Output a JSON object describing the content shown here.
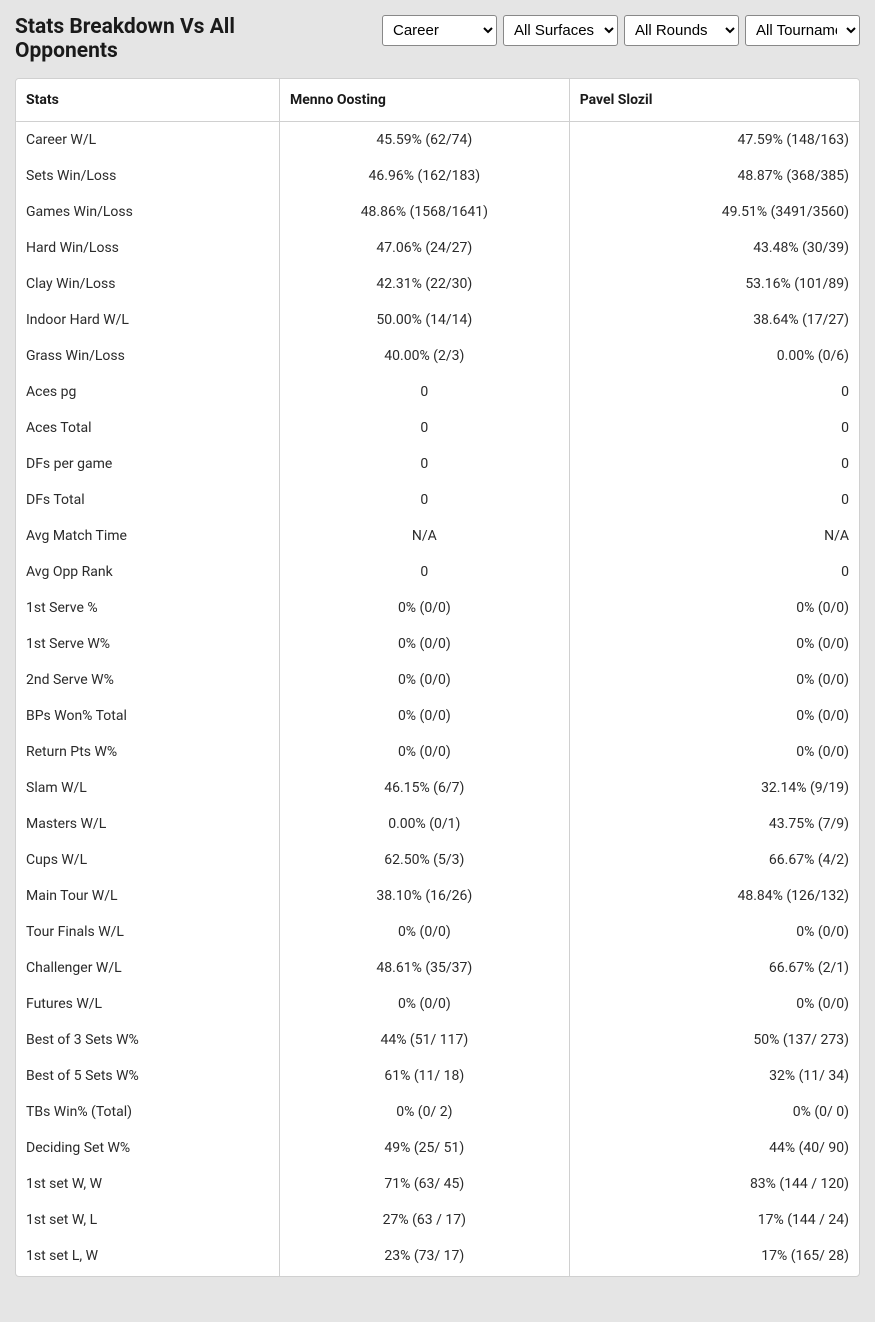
{
  "header": {
    "title": "Stats Breakdown Vs All Opponents"
  },
  "filters": {
    "career": {
      "selected": "Career",
      "options": [
        "Career"
      ]
    },
    "surface": {
      "selected": "All Surfaces",
      "options": [
        "All Surfaces"
      ]
    },
    "rounds": {
      "selected": "All Rounds",
      "options": [
        "All Rounds"
      ]
    },
    "tournaments": {
      "selected": "All Tournaments",
      "options": [
        "All Tournaments"
      ]
    }
  },
  "table": {
    "columns": {
      "stats": "Stats",
      "player1": "Menno Oosting",
      "player2": "Pavel Slozil"
    },
    "rows": [
      {
        "stat": "Career W/L",
        "p1": "45.59% (62/74)",
        "p2": "47.59% (148/163)"
      },
      {
        "stat": "Sets Win/Loss",
        "p1": "46.96% (162/183)",
        "p2": "48.87% (368/385)"
      },
      {
        "stat": "Games Win/Loss",
        "p1": "48.86% (1568/1641)",
        "p2": "49.51% (3491/3560)"
      },
      {
        "stat": "Hard Win/Loss",
        "p1": "47.06% (24/27)",
        "p2": "43.48% (30/39)"
      },
      {
        "stat": "Clay Win/Loss",
        "p1": "42.31% (22/30)",
        "p2": "53.16% (101/89)"
      },
      {
        "stat": "Indoor Hard W/L",
        "p1": "50.00% (14/14)",
        "p2": "38.64% (17/27)"
      },
      {
        "stat": "Grass Win/Loss",
        "p1": "40.00% (2/3)",
        "p2": "0.00% (0/6)"
      },
      {
        "stat": "Aces pg",
        "p1": "0",
        "p2": "0"
      },
      {
        "stat": "Aces Total",
        "p1": "0",
        "p2": "0"
      },
      {
        "stat": "DFs per game",
        "p1": "0",
        "p2": "0"
      },
      {
        "stat": "DFs Total",
        "p1": "0",
        "p2": "0"
      },
      {
        "stat": "Avg Match Time",
        "p1": "N/A",
        "p2": "N/A"
      },
      {
        "stat": "Avg Opp Rank",
        "p1": "0",
        "p2": "0"
      },
      {
        "stat": "1st Serve %",
        "p1": "0% (0/0)",
        "p2": "0% (0/0)"
      },
      {
        "stat": "1st Serve W%",
        "p1": "0% (0/0)",
        "p2": "0% (0/0)"
      },
      {
        "stat": "2nd Serve W%",
        "p1": "0% (0/0)",
        "p2": "0% (0/0)"
      },
      {
        "stat": "BPs Won% Total",
        "p1": "0% (0/0)",
        "p2": "0% (0/0)"
      },
      {
        "stat": "Return Pts W%",
        "p1": "0% (0/0)",
        "p2": "0% (0/0)"
      },
      {
        "stat": "Slam W/L",
        "p1": "46.15% (6/7)",
        "p2": "32.14% (9/19)"
      },
      {
        "stat": "Masters W/L",
        "p1": "0.00% (0/1)",
        "p2": "43.75% (7/9)"
      },
      {
        "stat": "Cups W/L",
        "p1": "62.50% (5/3)",
        "p2": "66.67% (4/2)"
      },
      {
        "stat": "Main Tour W/L",
        "p1": "38.10% (16/26)",
        "p2": "48.84% (126/132)"
      },
      {
        "stat": "Tour Finals W/L",
        "p1": "0% (0/0)",
        "p2": "0% (0/0)"
      },
      {
        "stat": "Challenger W/L",
        "p1": "48.61% (35/37)",
        "p2": "66.67% (2/1)"
      },
      {
        "stat": "Futures W/L",
        "p1": "0% (0/0)",
        "p2": "0% (0/0)"
      },
      {
        "stat": "Best of 3 Sets W%",
        "p1": "44% (51/ 117)",
        "p2": "50% (137/ 273)"
      },
      {
        "stat": "Best of 5 Sets W%",
        "p1": "61% (11/ 18)",
        "p2": "32% (11/ 34)"
      },
      {
        "stat": "TBs Win% (Total)",
        "p1": "0% (0/ 2)",
        "p2": "0% (0/ 0)"
      },
      {
        "stat": "Deciding Set W%",
        "p1": "49% (25/ 51)",
        "p2": "44% (40/ 90)"
      },
      {
        "stat": "1st set W, W",
        "p1": "71% (63/ 45)",
        "p2": "83% (144 / 120)"
      },
      {
        "stat": "1st set W, L",
        "p1": "27% (63 / 17)",
        "p2": "17% (144 / 24)"
      },
      {
        "stat": "1st set L, W",
        "p1": "23% (73/ 17)",
        "p2": "17% (165/ 28)"
      }
    ]
  }
}
